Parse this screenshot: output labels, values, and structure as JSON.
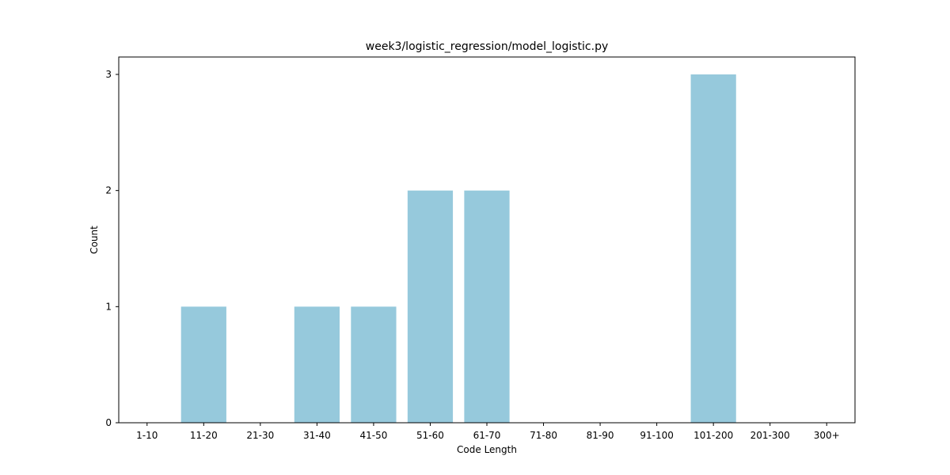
{
  "chart_data": {
    "type": "bar",
    "title": "week3/logistic_regression/model_logistic.py",
    "xlabel": "Code Length",
    "ylabel": "Count",
    "categories": [
      "1-10",
      "11-20",
      "21-30",
      "31-40",
      "41-50",
      "51-60",
      "61-70",
      "71-80",
      "81-90",
      "91-100",
      "101-200",
      "201-300",
      "300+"
    ],
    "values": [
      0,
      1,
      0,
      1,
      1,
      2,
      2,
      0,
      0,
      0,
      3,
      0,
      0
    ],
    "ylim": [
      0,
      3.15
    ],
    "yticks": [
      0,
      1,
      2,
      3
    ],
    "grid": false,
    "bar_color": "#96c9dc"
  }
}
